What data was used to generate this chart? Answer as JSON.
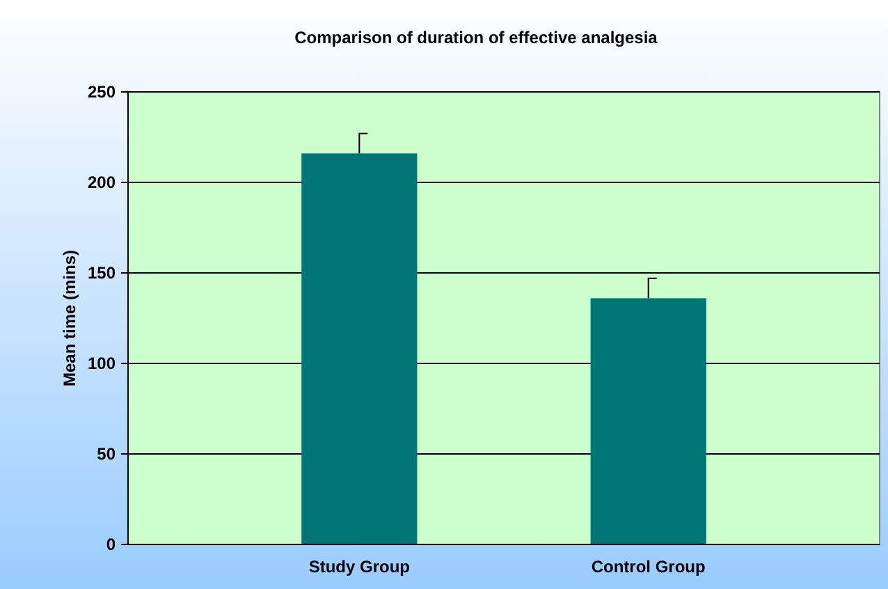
{
  "chart_data": {
    "type": "bar",
    "title": "Comparison of duration of effective analgesia",
    "ylabel": "Mean time (mins)",
    "categories": [
      "Study Group",
      "Control Group"
    ],
    "values": [
      216,
      136
    ],
    "errors": [
      11,
      11
    ],
    "color": "#007575",
    "ylim": [
      0,
      250
    ],
    "yticks": [
      0,
      50,
      100,
      150,
      200,
      250
    ],
    "grid": "y"
  }
}
